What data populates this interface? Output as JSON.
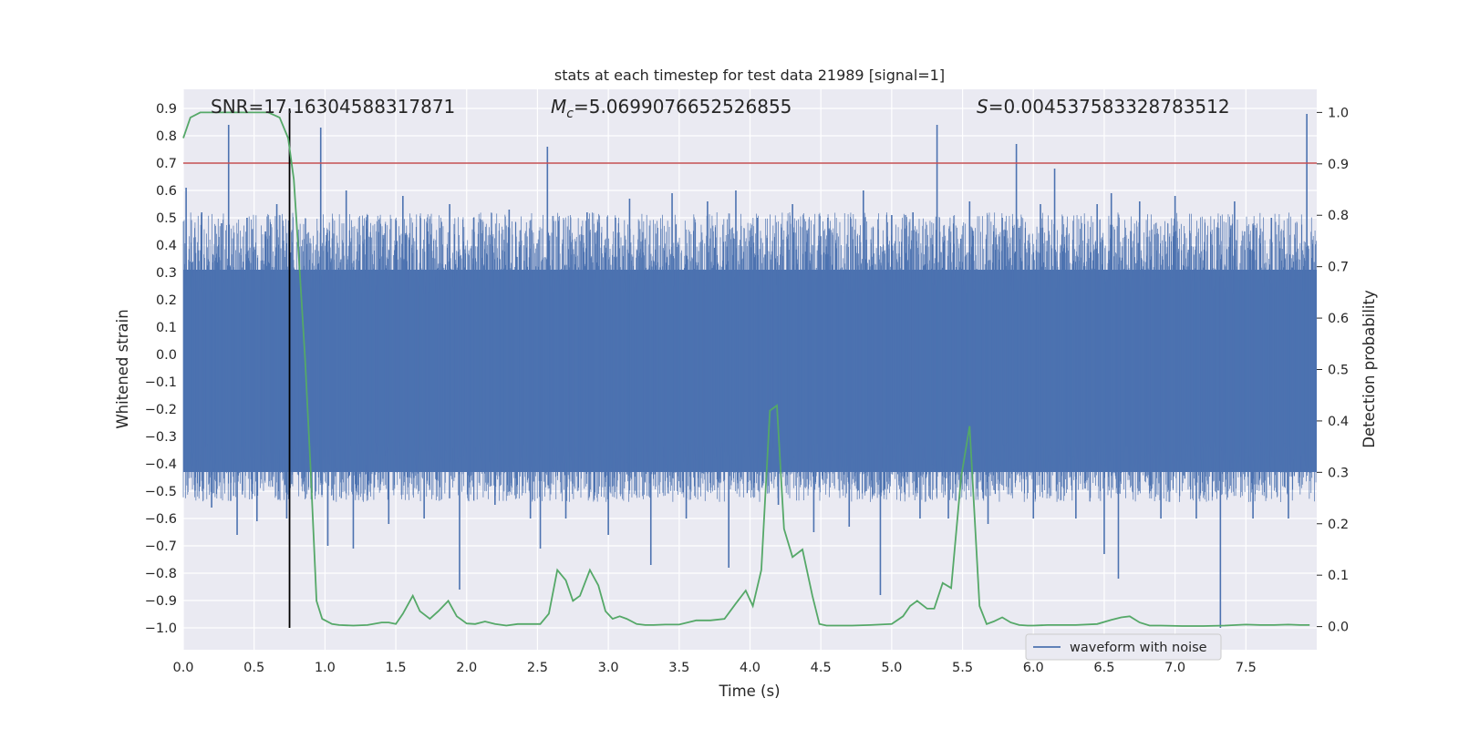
{
  "chart_data": {
    "type": "line",
    "title": "stats at each timestep for test data 21989 [signal=1]",
    "xlabel": "Time (s)",
    "ylabel": "Whitened strain",
    "y2label": "Detection probability",
    "xlim": [
      0.0,
      8.0
    ],
    "ylim": [
      -1.08,
      0.97
    ],
    "y2lim": [
      -0.045,
      1.045
    ],
    "xticks": [
      0.0,
      0.5,
      1.0,
      1.5,
      2.0,
      2.5,
      3.0,
      3.5,
      4.0,
      4.5,
      5.0,
      5.5,
      6.0,
      6.5,
      7.0,
      7.5
    ],
    "xtick_labels": [
      "0.0",
      "0.5",
      "1.0",
      "1.5",
      "2.0",
      "2.5",
      "3.0",
      "3.5",
      "4.0",
      "4.5",
      "5.0",
      "5.5",
      "6.0",
      "6.5",
      "7.0",
      "7.5"
    ],
    "yticks": [
      0.9,
      0.8,
      0.7,
      0.6,
      0.5,
      0.4,
      0.3,
      0.2,
      0.1,
      0.0,
      -0.1,
      -0.2,
      -0.3,
      -0.4,
      -0.5,
      -0.6,
      -0.7,
      -0.8,
      -0.9,
      -1.0
    ],
    "ytick_labels": [
      "0.9",
      "0.8",
      "0.7",
      "0.6",
      "0.5",
      "0.4",
      "0.3",
      "0.2",
      "0.1",
      "0.0",
      "−0.1",
      "−0.2",
      "−0.3",
      "−0.4",
      "−0.5",
      "−0.6",
      "−0.7",
      "−0.8",
      "−0.9",
      "−1.0"
    ],
    "y2ticks": [
      1.0,
      0.9,
      0.8,
      0.7,
      0.6,
      0.5,
      0.4,
      0.3,
      0.2,
      0.1,
      0.0
    ],
    "y2tick_labels": [
      "1.0",
      "0.9",
      "0.8",
      "0.7",
      "0.6",
      "0.5",
      "0.4",
      "0.3",
      "0.2",
      "0.1",
      "0.0"
    ],
    "annotations": {
      "snr": "SNR=17.16304588317871",
      "mc_symbol": "M",
      "mc_subscript": "c",
      "mc_value": "=5.0699076652526855",
      "s_symbol": "S",
      "s_value": "=0.004537583328783512"
    },
    "threshold": {
      "value": 0.7,
      "color": "#c44e52"
    },
    "marker_time": 0.75,
    "legend": {
      "label": "waveform with noise",
      "position": "lower-right"
    },
    "waveform": {
      "name": "waveform with noise",
      "color": "#4c72b0",
      "envelope_upper": 0.31,
      "envelope_lower": -0.43,
      "spikes": [
        [
          0.02,
          0.61
        ],
        [
          0.13,
          0.52
        ],
        [
          0.2,
          -0.56
        ],
        [
          0.27,
          0.48
        ],
        [
          0.32,
          0.84
        ],
        [
          0.38,
          -0.66
        ],
        [
          0.45,
          0.5
        ],
        [
          0.52,
          -0.61
        ],
        [
          0.58,
          0.45
        ],
        [
          0.66,
          0.55
        ],
        [
          0.73,
          -0.6
        ],
        [
          0.97,
          0.83
        ],
        [
          1.02,
          -0.7
        ],
        [
          1.15,
          0.6
        ],
        [
          1.2,
          -0.71
        ],
        [
          1.3,
          0.51
        ],
        [
          1.45,
          -0.62
        ],
        [
          1.55,
          0.58
        ],
        [
          1.7,
          -0.6
        ],
        [
          1.88,
          0.55
        ],
        [
          1.95,
          -0.86
        ],
        [
          2.05,
          0.5
        ],
        [
          2.2,
          -0.55
        ],
        [
          2.3,
          0.53
        ],
        [
          2.45,
          -0.6
        ],
        [
          2.52,
          -0.71
        ],
        [
          2.57,
          0.76
        ],
        [
          2.7,
          -0.6
        ],
        [
          2.85,
          0.52
        ],
        [
          3.0,
          -0.66
        ],
        [
          3.05,
          0.5
        ],
        [
          3.15,
          0.57
        ],
        [
          3.3,
          -0.77
        ],
        [
          3.45,
          0.59
        ],
        [
          3.55,
          -0.6
        ],
        [
          3.7,
          0.56
        ],
        [
          3.85,
          -0.78
        ],
        [
          3.9,
          0.6
        ],
        [
          4.05,
          0.5
        ],
        [
          4.2,
          -0.55
        ],
        [
          4.3,
          0.55
        ],
        [
          4.45,
          -0.65
        ],
        [
          4.55,
          0.5
        ],
        [
          4.7,
          -0.63
        ],
        [
          4.8,
          0.6
        ],
        [
          4.92,
          -0.88
        ],
        [
          5.0,
          0.51
        ],
        [
          5.15,
          0.52
        ],
        [
          5.2,
          -0.6
        ],
        [
          5.32,
          0.84
        ],
        [
          5.4,
          -0.6
        ],
        [
          5.55,
          0.56
        ],
        [
          5.68,
          -0.62
        ],
        [
          5.78,
          0.5
        ],
        [
          5.88,
          0.77
        ],
        [
          6.0,
          -0.6
        ],
        [
          6.05,
          0.55
        ],
        [
          6.15,
          0.68
        ],
        [
          6.3,
          -0.6
        ],
        [
          6.45,
          0.55
        ],
        [
          6.5,
          -0.73
        ],
        [
          6.55,
          0.59
        ],
        [
          6.6,
          -0.82
        ],
        [
          6.75,
          0.56
        ],
        [
          6.9,
          -0.6
        ],
        [
          7.0,
          0.58
        ],
        [
          7.15,
          -0.6
        ],
        [
          7.32,
          -1.0
        ],
        [
          7.42,
          0.56
        ],
        [
          7.55,
          -0.6
        ],
        [
          7.68,
          0.5
        ],
        [
          7.8,
          -0.6
        ],
        [
          7.93,
          0.88
        ]
      ]
    },
    "probability": {
      "name": "Detection probability",
      "color": "#55a868",
      "x": [
        0.0,
        0.05,
        0.12,
        0.2,
        0.3,
        0.4,
        0.5,
        0.6,
        0.68,
        0.74,
        0.78,
        0.82,
        0.86,
        0.9,
        0.94,
        0.98,
        1.05,
        1.1,
        1.2,
        1.3,
        1.4,
        1.45,
        1.5,
        1.55,
        1.62,
        1.67,
        1.74,
        1.8,
        1.87,
        1.93,
        2.0,
        2.06,
        2.13,
        2.2,
        2.28,
        2.36,
        2.45,
        2.52,
        2.58,
        2.64,
        2.7,
        2.75,
        2.8,
        2.87,
        2.93,
        2.98,
        3.03,
        3.08,
        3.13,
        3.2,
        3.26,
        3.32,
        3.4,
        3.5,
        3.62,
        3.72,
        3.82,
        3.9,
        3.97,
        4.02,
        4.08,
        4.14,
        4.19,
        4.24,
        4.3,
        4.37,
        4.44,
        4.49,
        4.54,
        4.6,
        4.65,
        4.72,
        4.85,
        5.0,
        5.08,
        5.13,
        5.18,
        5.25,
        5.3,
        5.36,
        5.42,
        5.49,
        5.55,
        5.62,
        5.67,
        5.72,
        5.78,
        5.84,
        5.9,
        5.96,
        6.0,
        6.1,
        6.3,
        6.45,
        6.55,
        6.62,
        6.68,
        6.75,
        6.82,
        6.9,
        7.05,
        7.2,
        7.35,
        7.5,
        7.6,
        7.7,
        7.8,
        7.88,
        7.95
      ],
      "y": [
        0.95,
        0.99,
        1.0,
        1.0,
        1.0,
        1.0,
        1.0,
        1.0,
        0.99,
        0.95,
        0.87,
        0.7,
        0.52,
        0.3,
        0.05,
        0.015,
        0.005,
        0.003,
        0.002,
        0.003,
        0.008,
        0.008,
        0.005,
        0.025,
        0.06,
        0.03,
        0.015,
        0.03,
        0.05,
        0.02,
        0.006,
        0.005,
        0.01,
        0.005,
        0.002,
        0.005,
        0.005,
        0.005,
        0.025,
        0.11,
        0.09,
        0.05,
        0.06,
        0.11,
        0.08,
        0.03,
        0.015,
        0.02,
        0.015,
        0.005,
        0.003,
        0.003,
        0.004,
        0.004,
        0.012,
        0.012,
        0.015,
        0.045,
        0.07,
        0.04,
        0.11,
        0.42,
        0.43,
        0.19,
        0.135,
        0.15,
        0.06,
        0.005,
        0.002,
        0.002,
        0.002,
        0.002,
        0.003,
        0.005,
        0.02,
        0.04,
        0.05,
        0.035,
        0.035,
        0.085,
        0.075,
        0.29,
        0.39,
        0.04,
        0.005,
        0.01,
        0.018,
        0.008,
        0.003,
        0.002,
        0.002,
        0.003,
        0.003,
        0.005,
        0.013,
        0.018,
        0.02,
        0.008,
        0.002,
        0.002,
        0.001,
        0.001,
        0.002,
        0.004,
        0.003,
        0.003,
        0.004,
        0.003,
        0.003
      ]
    }
  }
}
